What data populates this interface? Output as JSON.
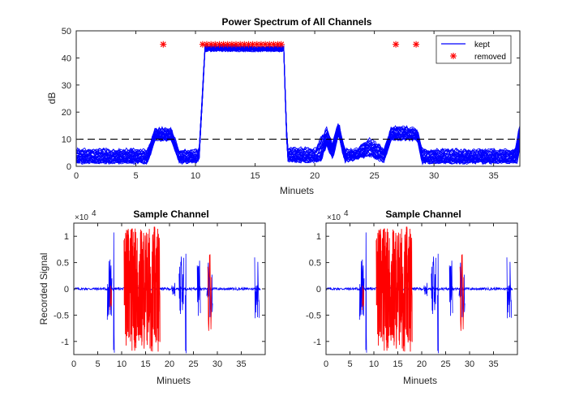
{
  "chart_data": [
    {
      "type": "line",
      "title": "Power Spectrum of All Channels",
      "xlabel": "Minuets",
      "ylabel": "dB",
      "xlim": [
        0,
        37.2
      ],
      "ylim": [
        0,
        50
      ],
      "xticks": [
        0,
        5,
        10,
        15,
        20,
        25,
        30,
        35
      ],
      "yticks": [
        0,
        10,
        20,
        30,
        40,
        50
      ],
      "threshold": 10,
      "grid": false,
      "legend": {
        "location": "top-right",
        "entries": [
          "kept",
          "removed"
        ]
      },
      "series_colors": {
        "kept": "#0000ff",
        "removed": "#ff0000",
        "threshold": "#000000"
      },
      "envelope_points": [
        [
          0,
          6
        ],
        [
          1,
          6
        ],
        [
          2,
          6
        ],
        [
          3,
          6
        ],
        [
          4,
          6
        ],
        [
          5,
          6
        ],
        [
          6,
          6
        ],
        [
          6.6,
          13.5
        ],
        [
          7.3,
          14
        ],
        [
          8.0,
          13.5
        ],
        [
          8.6,
          6
        ],
        [
          9.5,
          5.5
        ],
        [
          10.3,
          6
        ],
        [
          10.8,
          44
        ],
        [
          13,
          44.5
        ],
        [
          15,
          43.5
        ],
        [
          17,
          44
        ],
        [
          17.4,
          44
        ],
        [
          17.7,
          6.5
        ],
        [
          19,
          6.5
        ],
        [
          20,
          6
        ],
        [
          21,
          14
        ],
        [
          21.5,
          8
        ],
        [
          22,
          16.5
        ],
        [
          22.5,
          6
        ],
        [
          23.5,
          6
        ],
        [
          24.5,
          10
        ],
        [
          25.3,
          8
        ],
        [
          25.8,
          6
        ],
        [
          26.4,
          14
        ],
        [
          27.5,
          14.5
        ],
        [
          28.6,
          13.5
        ],
        [
          29,
          6
        ],
        [
          31,
          6
        ],
        [
          33,
          5.8
        ],
        [
          35,
          6
        ],
        [
          36.8,
          6
        ],
        [
          37.2,
          15
        ]
      ],
      "baseline_points": [
        [
          0,
          1.5
        ],
        [
          6,
          1.5
        ],
        [
          6.6,
          10
        ],
        [
          8.0,
          10
        ],
        [
          8.6,
          1.5
        ],
        [
          10.3,
          2
        ],
        [
          10.8,
          43
        ],
        [
          17.4,
          43
        ],
        [
          17.7,
          2
        ],
        [
          20.5,
          2
        ],
        [
          21,
          8
        ],
        [
          21.5,
          3
        ],
        [
          22,
          12
        ],
        [
          22.5,
          2
        ],
        [
          24.5,
          4
        ],
        [
          25.8,
          2
        ],
        [
          26.4,
          10
        ],
        [
          28.6,
          10
        ],
        [
          29,
          1.5
        ],
        [
          37,
          1.5
        ],
        [
          37.2,
          8
        ]
      ],
      "removed_markers": [
        7.3,
        10.6,
        10.95,
        11.3,
        11.65,
        12.0,
        12.35,
        12.7,
        13.05,
        13.4,
        13.75,
        14.1,
        14.45,
        14.8,
        15.15,
        15.5,
        15.85,
        16.2,
        16.55,
        16.9,
        17.2,
        26.8,
        28.5
      ],
      "removed_marker_y": 45,
      "channel_count": 28
    },
    {
      "type": "line",
      "title": "Sample Channel",
      "xlabel": "Minuets",
      "ylabel": "Recorded Signal",
      "exponent_label": "×10",
      "exponent_power": "4",
      "xlim": [
        0,
        40
      ],
      "ylim": [
        -1.25,
        1.25
      ],
      "xticks": [
        0,
        5,
        10,
        15,
        20,
        25,
        30,
        35
      ],
      "yticks": [
        -1,
        -0.5,
        0,
        0.5,
        1
      ],
      "ytick_labels": [
        "-1",
        "-0.5",
        "0",
        "0.5",
        "1"
      ],
      "kept_color": "#0000ff",
      "removed_color": "#ff0000",
      "kept_bursts": [
        {
          "start": 7.0,
          "end": 8.0,
          "amp": 0.62
        },
        {
          "start": 8.3,
          "end": 8.5,
          "amp": 1.25
        },
        {
          "start": 20.5,
          "end": 21.2,
          "amp": 0.15
        },
        {
          "start": 22.0,
          "end": 23.0,
          "amp": 0.65
        },
        {
          "start": 23.3,
          "end": 23.5,
          "amp": 1.25
        },
        {
          "start": 25.8,
          "end": 26.5,
          "amp": 0.62
        },
        {
          "start": 27.8,
          "end": 29.0,
          "amp": 0.62
        },
        {
          "start": 37.8,
          "end": 38.8,
          "amp": 0.62
        }
      ],
      "removed_bursts": [
        {
          "start": 10.5,
          "end": 18.0,
          "amp": 1.2
        },
        {
          "start": 7.6,
          "end": 7.9,
          "amp": 0.6
        },
        {
          "start": 28.0,
          "end": 28.8,
          "amp": 0.8
        }
      ]
    },
    {
      "type": "line",
      "title": "Sample Channel",
      "xlabel": "Minuets",
      "ylabel": "",
      "exponent_label": "×10",
      "exponent_power": "4",
      "xlim": [
        0,
        40
      ],
      "ylim": [
        -1.25,
        1.25
      ],
      "xticks": [
        0,
        5,
        10,
        15,
        20,
        25,
        30,
        35
      ],
      "yticks": [
        -1,
        -0.5,
        0,
        0.5,
        1
      ],
      "ytick_labels": [
        "-1",
        "-0.5",
        "0",
        "0.5",
        "1"
      ],
      "kept_color": "#0000ff",
      "removed_color": "#ff0000",
      "kept_bursts": [
        {
          "start": 7.0,
          "end": 8.0,
          "amp": 0.62
        },
        {
          "start": 8.3,
          "end": 8.5,
          "amp": 1.25
        },
        {
          "start": 20.5,
          "end": 21.2,
          "amp": 0.15
        },
        {
          "start": 22.0,
          "end": 23.0,
          "amp": 0.65
        },
        {
          "start": 23.3,
          "end": 23.5,
          "amp": 1.25
        },
        {
          "start": 25.8,
          "end": 26.5,
          "amp": 0.62
        },
        {
          "start": 27.8,
          "end": 29.0,
          "amp": 0.62
        },
        {
          "start": 37.8,
          "end": 38.8,
          "amp": 0.62
        }
      ],
      "removed_bursts": [
        {
          "start": 10.5,
          "end": 18.0,
          "amp": 1.2
        },
        {
          "start": 7.6,
          "end": 7.9,
          "amp": 0.6
        },
        {
          "start": 28.0,
          "end": 28.8,
          "amp": 0.8
        }
      ]
    }
  ]
}
